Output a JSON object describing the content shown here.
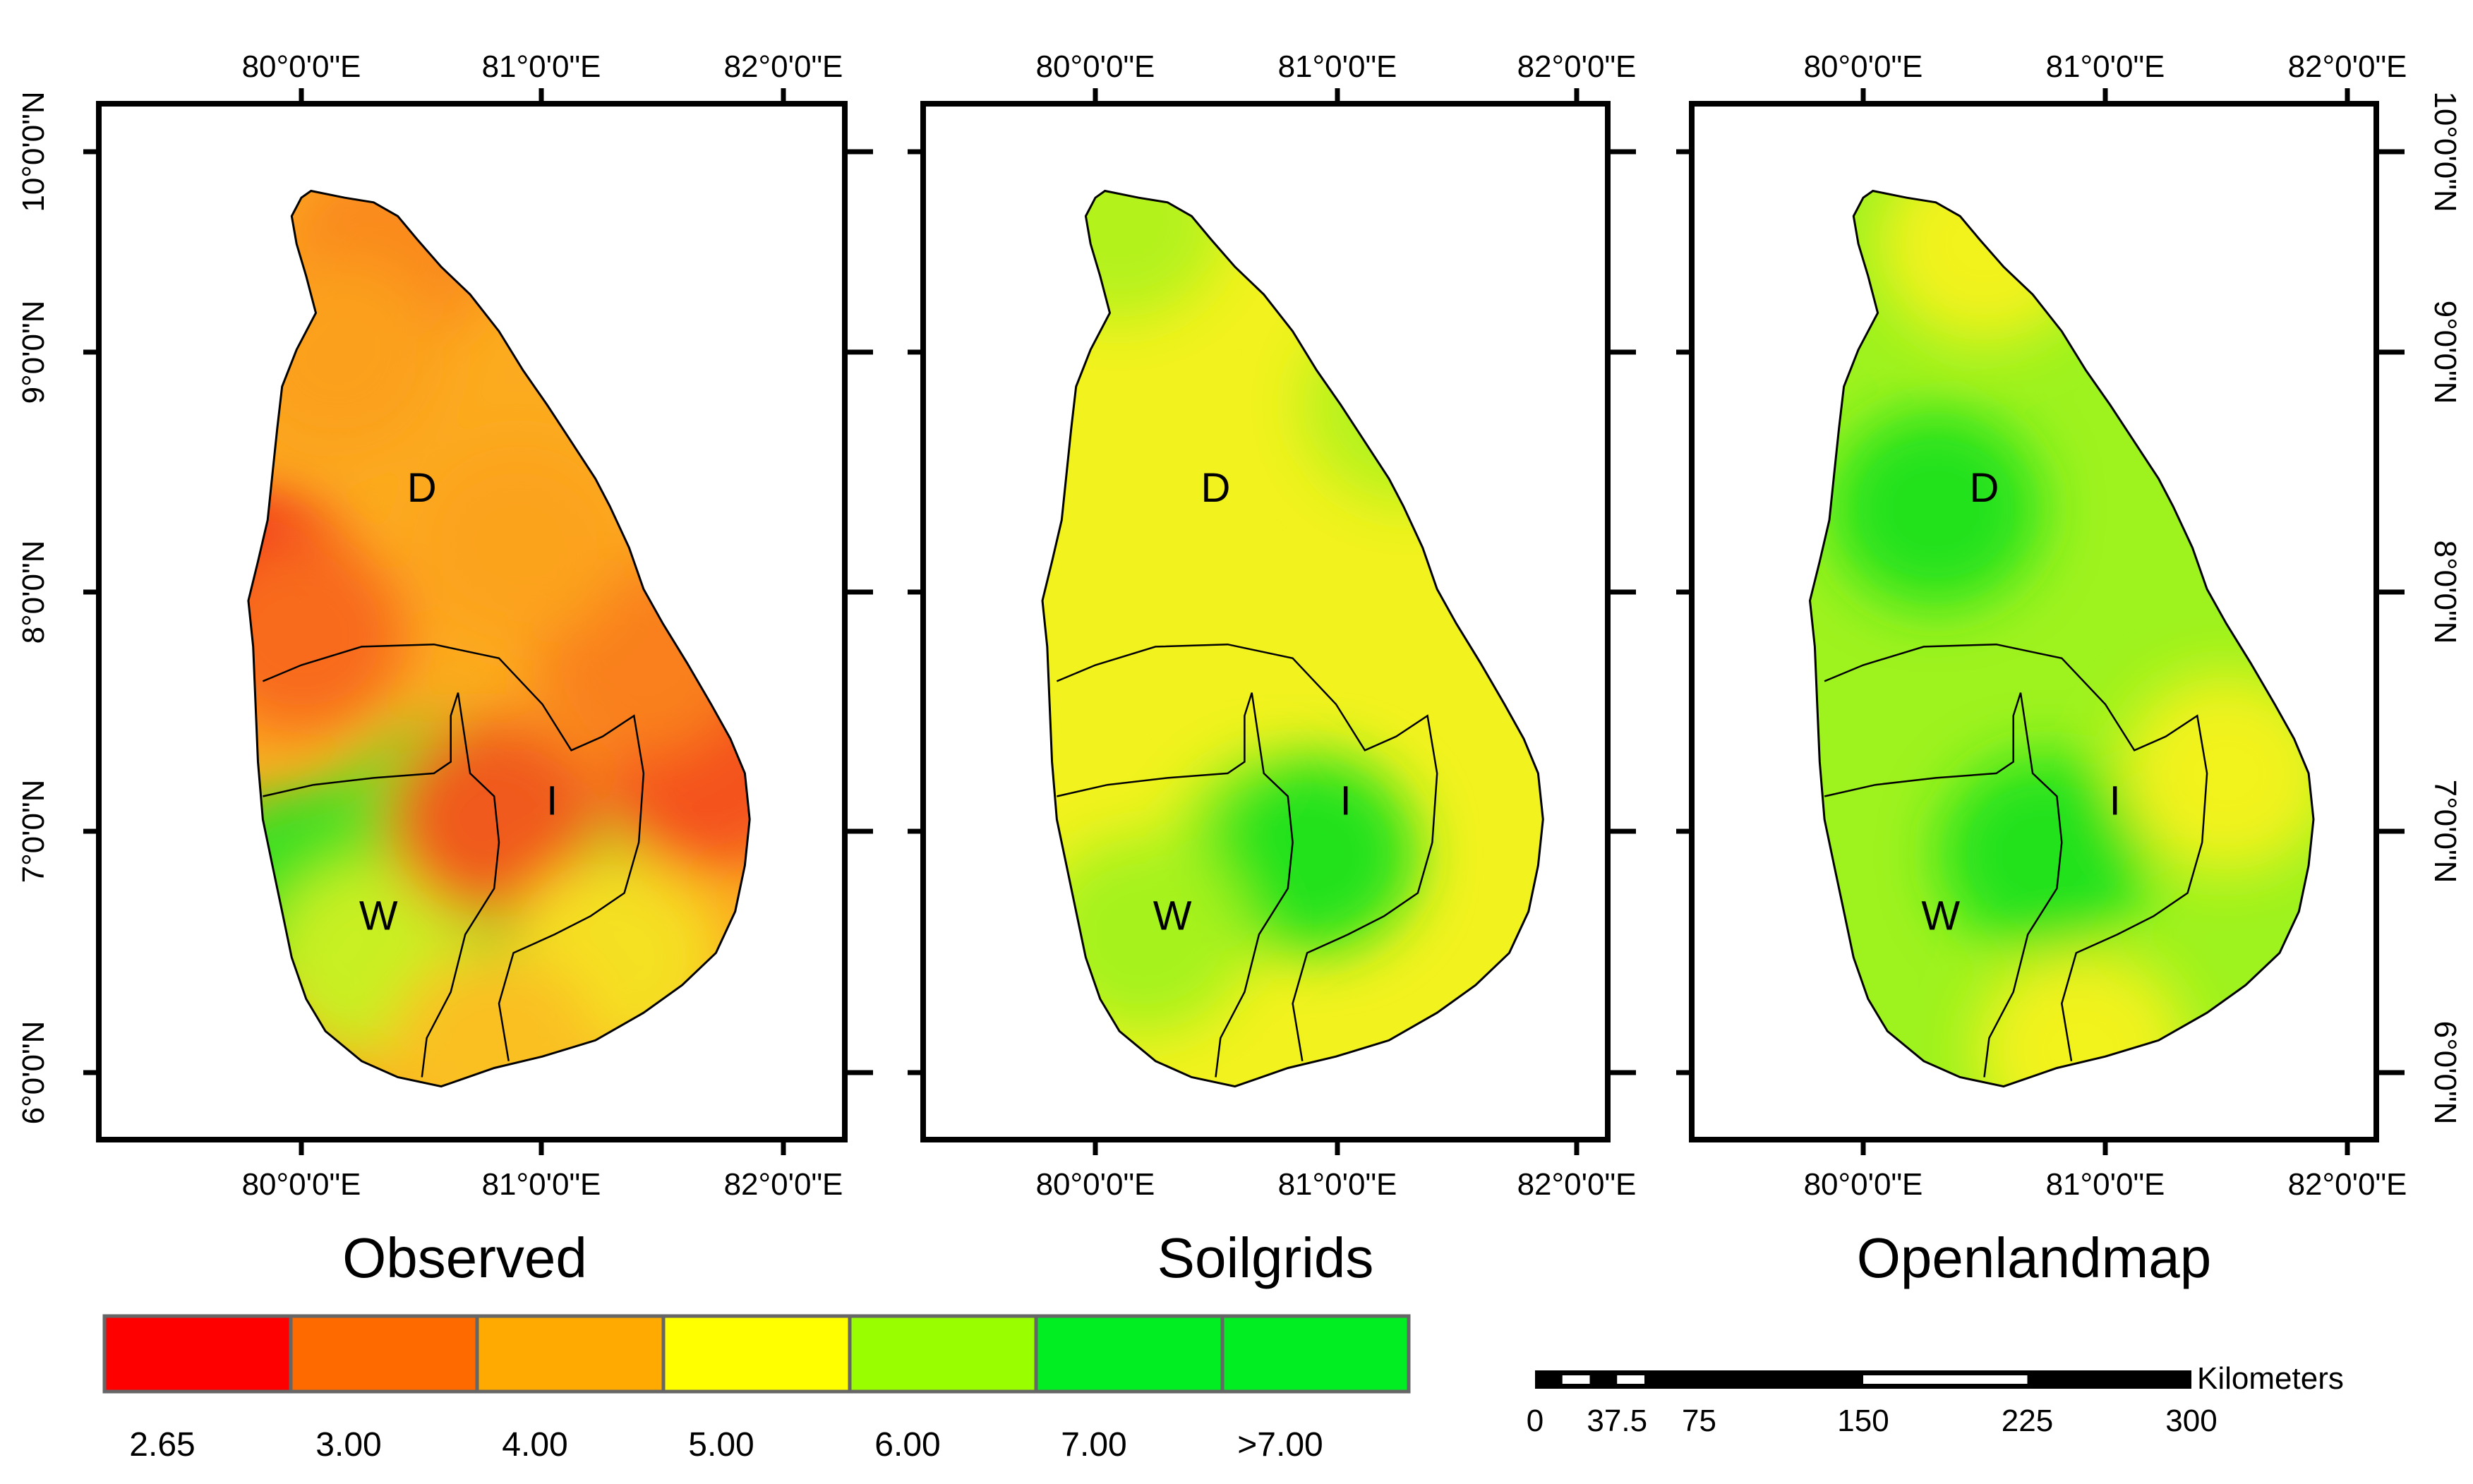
{
  "axes": {
    "lon_ticks": [
      "80°0'0\"E",
      "81°0'0\"E",
      "82°0'0\"E"
    ],
    "lat_ticks": [
      "10°0'0\"N",
      "9°0'0\"N",
      "8°0'0\"N",
      "7°0'0\"N",
      "6°0'0\"N"
    ],
    "lon_values": [
      80,
      81,
      82
    ],
    "lat_values": [
      10,
      9,
      8,
      7,
      6
    ]
  },
  "zones": {
    "dry": "D",
    "intermediate": "I",
    "wet": "W"
  },
  "maps": [
    {
      "title": "Observed",
      "base_color": "#fcab1f",
      "blobs": [
        {
          "lon": 80.35,
          "lat": 9.55,
          "c": "#fa8a1a"
        },
        {
          "lon": 79.8,
          "lat": 8.1,
          "c": "#f22a1a"
        },
        {
          "lon": 80.0,
          "lat": 7.9,
          "c": "#f86a1a"
        },
        {
          "lon": 81.7,
          "lat": 7.3,
          "c": "#f4521a"
        },
        {
          "lon": 81.4,
          "lat": 7.8,
          "c": "#f9801a"
        },
        {
          "lon": 80.15,
          "lat": 9.1,
          "c": "#fba01f"
        },
        {
          "lon": 80.9,
          "lat": 8.3,
          "c": "#fca31f"
        },
        {
          "lon": 80.4,
          "lat": 6.95,
          "c": "#3fe020"
        },
        {
          "lon": 80.0,
          "lat": 6.8,
          "c": "#35e020"
        },
        {
          "lon": 80.6,
          "lat": 7.1,
          "c": "#5ae020"
        },
        {
          "lon": 80.95,
          "lat": 6.8,
          "c": "#4be024"
        },
        {
          "lon": 80.3,
          "lat": 6.5,
          "c": "#c8f020"
        },
        {
          "lon": 80.8,
          "lat": 7.1,
          "c": "#f05a1a"
        },
        {
          "lon": 81.3,
          "lat": 6.5,
          "c": "#f5e020"
        },
        {
          "lon": 80.8,
          "lat": 6.1,
          "c": "#fac020"
        }
      ]
    },
    {
      "title": "Soilgrids",
      "base_color": "#f2f21e",
      "blobs": [
        {
          "lon": 80.75,
          "lat": 6.95,
          "c": "#9ef21e"
        },
        {
          "lon": 80.9,
          "lat": 6.95,
          "c": "#22e21e"
        },
        {
          "lon": 80.2,
          "lat": 6.6,
          "c": "#a6f21e"
        },
        {
          "lon": 80.1,
          "lat": 9.7,
          "c": "#b4f21e"
        },
        {
          "lon": 81.3,
          "lat": 8.9,
          "c": "#b6f21e"
        }
      ]
    },
    {
      "title": "Openlandmap",
      "base_color": "#9ef21e",
      "blobs": [
        {
          "lon": 80.3,
          "lat": 8.45,
          "c": "#22e21e"
        },
        {
          "lon": 80.75,
          "lat": 6.95,
          "c": "#22e21e"
        },
        {
          "lon": 81.5,
          "lat": 7.3,
          "c": "#f2f21e"
        },
        {
          "lon": 80.9,
          "lat": 6.1,
          "c": "#f2f21e"
        },
        {
          "lon": 80.5,
          "lat": 9.6,
          "c": "#f2f21e"
        }
      ]
    }
  ],
  "legend": {
    "colors": [
      "#ff0000",
      "#ff6a00",
      "#ffaa00",
      "#ffff00",
      "#99ff00",
      "#00ee22",
      "#00ee22"
    ],
    "labels": [
      "2.65",
      "3.00",
      "4.00",
      "5.00",
      "6.00",
      "7.00",
      ">7.00"
    ]
  },
  "scale_bar": {
    "unit": "Kilometers",
    "labels": [
      "0",
      "37.5",
      "75",
      "150",
      "225",
      "300"
    ],
    "values": [
      0,
      37.5,
      75,
      150,
      225,
      300
    ]
  }
}
